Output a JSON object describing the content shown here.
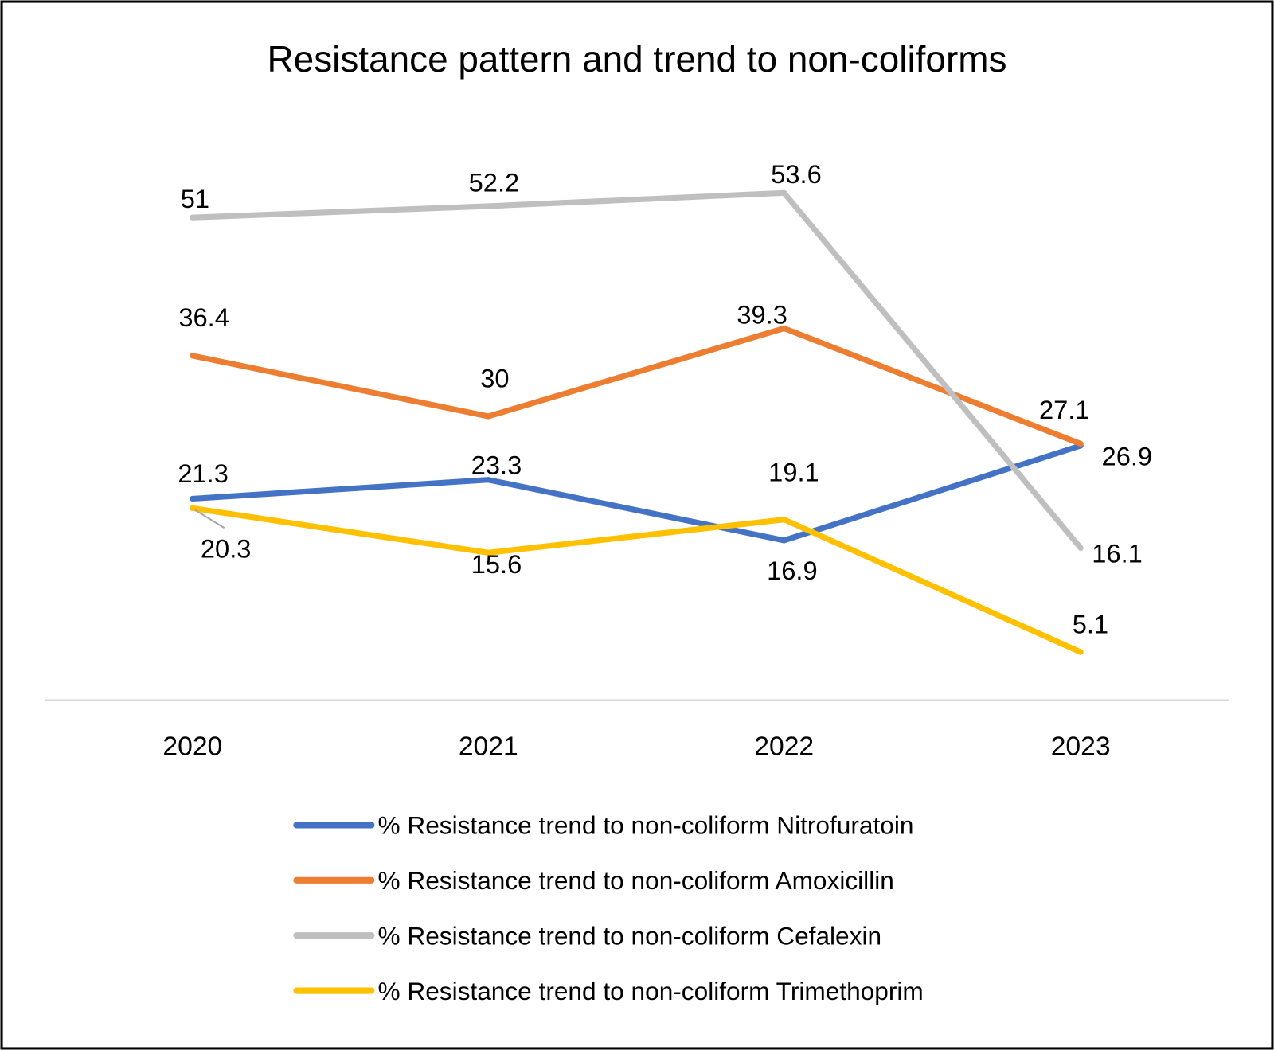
{
  "chart_data": {
    "type": "line",
    "title": "Resistance pattern and trend to non-coliforms",
    "xlabel": "",
    "ylabel": "",
    "categories": [
      "2020",
      "2021",
      "2022",
      "2023"
    ],
    "ylim": [
      0,
      60
    ],
    "grid": false,
    "legend_position": "bottom",
    "series": [
      {
        "name": "% Resistance trend to non-coliform Nitrofuratoin",
        "color": "#4472C4",
        "values": [
          21.3,
          23.3,
          16.9,
          26.9
        ],
        "labels": [
          "21.3",
          "23.3",
          "16.9",
          "26.9"
        ]
      },
      {
        "name": "% Resistance trend to non-coliform Amoxicillin",
        "color": "#ED7D31",
        "values": [
          36.4,
          30,
          39.3,
          27.1
        ],
        "labels": [
          "36.4",
          "30",
          "39.3",
          "27.1"
        ]
      },
      {
        "name": "% Resistance trend to non-coliform Cefalexin",
        "color": "#BFBFBF",
        "values": [
          51,
          52.2,
          53.6,
          16.1
        ],
        "labels": [
          "51",
          "52.2",
          "53.6",
          "16.1"
        ]
      },
      {
        "name": "% Resistance trend to non-coliform Trimethoprim",
        "color": "#FFC000",
        "values": [
          20.3,
          15.6,
          19.1,
          5.1
        ],
        "labels": [
          "20.3",
          "15.6",
          "19.1",
          "5.1"
        ]
      }
    ]
  }
}
